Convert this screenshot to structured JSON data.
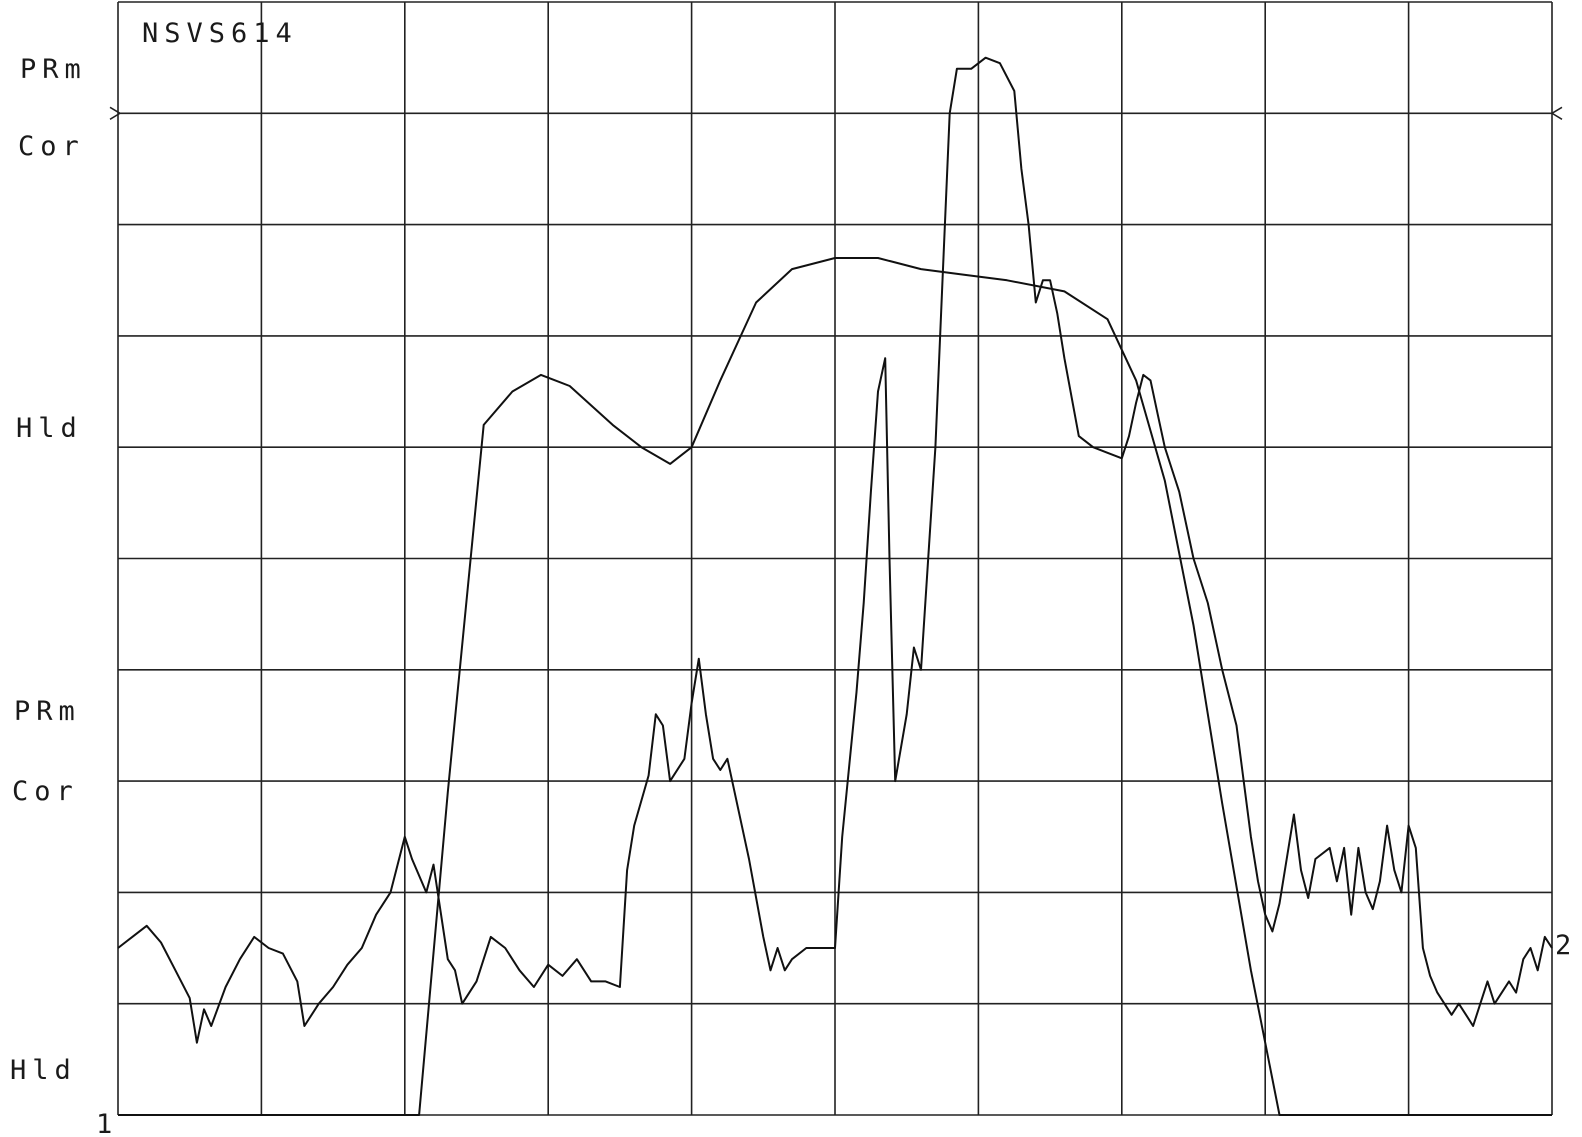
{
  "chart_data": {
    "type": "line",
    "title": "NSVS614",
    "left_labels": [
      "PRm",
      "Cor",
      "Hld",
      "PRm",
      "Cor",
      "Hld"
    ],
    "end_markers": {
      "start": "1",
      "end": "2"
    },
    "grid": true,
    "xlim": [
      0,
      10
    ],
    "ylim": [
      0,
      10
    ],
    "series": [
      {
        "values": [
          [
            0,
            0
          ],
          [
            2.1,
            0
          ],
          [
            2.3,
            2.9
          ],
          [
            2.55,
            6.2
          ],
          [
            2.75,
            6.5
          ],
          [
            2.95,
            6.65
          ],
          [
            3.15,
            6.55
          ],
          [
            3.45,
            6.2
          ],
          [
            3.65,
            6.0
          ],
          [
            3.85,
            5.85
          ],
          [
            4.0,
            6.0
          ],
          [
            4.2,
            6.6
          ],
          [
            4.45,
            7.3
          ],
          [
            4.7,
            7.6
          ],
          [
            5.0,
            7.7
          ],
          [
            5.3,
            7.7
          ],
          [
            5.6,
            7.6
          ],
          [
            5.9,
            7.55
          ],
          [
            6.2,
            7.5
          ],
          [
            6.6,
            7.4
          ],
          [
            6.9,
            7.15
          ],
          [
            7.1,
            6.6
          ],
          [
            7.3,
            5.7
          ],
          [
            7.5,
            4.4
          ],
          [
            7.7,
            2.8
          ],
          [
            7.9,
            1.3
          ],
          [
            8.1,
            0
          ],
          [
            10,
            0
          ]
        ]
      },
      {
        "values": [
          [
            0,
            1.5
          ],
          [
            0.1,
            1.6
          ],
          [
            0.2,
            1.7
          ],
          [
            0.3,
            1.55
          ],
          [
            0.4,
            1.3
          ],
          [
            0.5,
            1.05
          ],
          [
            0.55,
            0.65
          ],
          [
            0.6,
            0.95
          ],
          [
            0.65,
            0.8
          ],
          [
            0.75,
            1.15
          ],
          [
            0.85,
            1.4
          ],
          [
            0.95,
            1.6
          ],
          [
            1.05,
            1.5
          ],
          [
            1.15,
            1.45
          ],
          [
            1.25,
            1.2
          ],
          [
            1.3,
            0.8
          ],
          [
            1.4,
            1.0
          ],
          [
            1.5,
            1.15
          ],
          [
            1.6,
            1.35
          ],
          [
            1.7,
            1.5
          ],
          [
            1.8,
            1.8
          ],
          [
            1.9,
            2.0
          ],
          [
            2.0,
            2.5
          ],
          [
            2.05,
            2.3
          ],
          [
            2.15,
            2.0
          ],
          [
            2.2,
            2.25
          ],
          [
            2.3,
            1.4
          ],
          [
            2.35,
            1.3
          ],
          [
            2.4,
            1.0
          ],
          [
            2.5,
            1.2
          ],
          [
            2.6,
            1.6
          ],
          [
            2.7,
            1.5
          ],
          [
            2.8,
            1.3
          ],
          [
            2.9,
            1.15
          ],
          [
            3.0,
            1.35
          ],
          [
            3.1,
            1.25
          ],
          [
            3.2,
            1.4
          ],
          [
            3.3,
            1.2
          ],
          [
            3.4,
            1.2
          ],
          [
            3.5,
            1.15
          ],
          [
            3.55,
            2.2
          ],
          [
            3.6,
            2.6
          ],
          [
            3.7,
            3.05
          ],
          [
            3.75,
            3.6
          ],
          [
            3.8,
            3.5
          ],
          [
            3.85,
            3.0
          ],
          [
            3.95,
            3.2
          ],
          [
            4.0,
            3.7
          ],
          [
            4.05,
            4.1
          ],
          [
            4.1,
            3.6
          ],
          [
            4.15,
            3.2
          ],
          [
            4.2,
            3.1
          ],
          [
            4.25,
            3.2
          ],
          [
            4.3,
            2.9
          ],
          [
            4.35,
            2.6
          ],
          [
            4.4,
            2.3
          ],
          [
            4.5,
            1.6
          ],
          [
            4.55,
            1.3
          ],
          [
            4.6,
            1.5
          ],
          [
            4.65,
            1.3
          ],
          [
            4.7,
            1.4
          ],
          [
            4.8,
            1.5
          ],
          [
            4.9,
            1.5
          ],
          [
            5.0,
            1.5
          ],
          [
            5.05,
            2.5
          ],
          [
            5.15,
            3.8
          ],
          [
            5.2,
            4.6
          ],
          [
            5.25,
            5.6
          ],
          [
            5.3,
            6.5
          ],
          [
            5.35,
            6.8
          ],
          [
            5.38,
            5.0
          ],
          [
            5.42,
            3.0
          ],
          [
            5.5,
            3.6
          ],
          [
            5.55,
            4.2
          ],
          [
            5.6,
            4.0
          ],
          [
            5.65,
            5.0
          ],
          [
            5.7,
            6.0
          ],
          [
            5.75,
            7.5
          ],
          [
            5.8,
            9.0
          ],
          [
            5.85,
            9.4
          ],
          [
            5.95,
            9.4
          ],
          [
            6.05,
            9.5
          ],
          [
            6.15,
            9.45
          ],
          [
            6.25,
            9.2
          ],
          [
            6.3,
            8.5
          ],
          [
            6.35,
            8.0
          ],
          [
            6.4,
            7.3
          ],
          [
            6.45,
            7.5
          ],
          [
            6.5,
            7.5
          ],
          [
            6.55,
            7.2
          ],
          [
            6.6,
            6.8
          ],
          [
            6.7,
            6.1
          ],
          [
            6.8,
            6.0
          ],
          [
            6.9,
            5.95
          ],
          [
            7.0,
            5.9
          ],
          [
            7.05,
            6.1
          ],
          [
            7.1,
            6.4
          ],
          [
            7.15,
            6.65
          ],
          [
            7.2,
            6.6
          ],
          [
            7.25,
            6.3
          ],
          [
            7.3,
            6.0
          ],
          [
            7.35,
            5.8
          ],
          [
            7.4,
            5.6
          ],
          [
            7.5,
            5.0
          ],
          [
            7.6,
            4.6
          ],
          [
            7.7,
            4.0
          ],
          [
            7.8,
            3.5
          ],
          [
            7.85,
            3.0
          ],
          [
            7.9,
            2.5
          ],
          [
            7.95,
            2.1
          ],
          [
            8.0,
            1.8
          ],
          [
            8.05,
            1.65
          ],
          [
            8.1,
            1.9
          ],
          [
            8.15,
            2.3
          ],
          [
            8.2,
            2.7
          ],
          [
            8.25,
            2.2
          ],
          [
            8.3,
            1.95
          ],
          [
            8.35,
            2.3
          ],
          [
            8.45,
            2.4
          ],
          [
            8.5,
            2.1
          ],
          [
            8.55,
            2.4
          ],
          [
            8.6,
            1.8
          ],
          [
            8.65,
            2.4
          ],
          [
            8.7,
            2.0
          ],
          [
            8.75,
            1.85
          ],
          [
            8.8,
            2.1
          ],
          [
            8.85,
            2.6
          ],
          [
            8.9,
            2.2
          ],
          [
            8.95,
            2.0
          ],
          [
            9.0,
            2.6
          ],
          [
            9.05,
            2.4
          ],
          [
            9.1,
            1.5
          ],
          [
            9.15,
            1.25
          ],
          [
            9.2,
            1.1
          ],
          [
            9.3,
            0.9
          ],
          [
            9.35,
            1.0
          ],
          [
            9.4,
            0.9
          ],
          [
            9.45,
            0.8
          ],
          [
            9.5,
            1.0
          ],
          [
            9.55,
            1.2
          ],
          [
            9.6,
            1.0
          ],
          [
            9.7,
            1.2
          ],
          [
            9.75,
            1.1
          ],
          [
            9.8,
            1.4
          ],
          [
            9.85,
            1.5
          ],
          [
            9.9,
            1.3
          ],
          [
            9.95,
            1.6
          ],
          [
            10,
            1.5
          ]
        ]
      }
    ]
  }
}
